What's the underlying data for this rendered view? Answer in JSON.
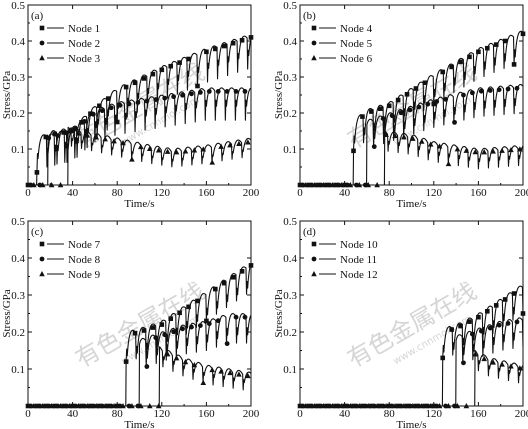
{
  "watermark": {
    "main": "有色金属在线",
    "url": "www.cnnmol.com"
  },
  "chart_data": [
    {
      "type": "line",
      "panel_label": "(a)",
      "xlabel": "Time/s",
      "ylabel": "Stress/GPa",
      "xlim": [
        0,
        200
      ],
      "ylim": [
        0,
        0.5
      ],
      "xticks": [
        0,
        40,
        80,
        120,
        160,
        200
      ],
      "yticks": [
        0.1,
        0.2,
        0.3,
        0.4,
        0.5
      ],
      "legend_position": "top-left",
      "grid": false,
      "series": [
        {
          "name": "Node 1",
          "marker": "square",
          "onset": 8,
          "final": 0.41,
          "min": 0.02,
          "drop": 0.065,
          "valley": 0.07,
          "period": 9,
          "phase": 0,
          "x": [
            0,
            8,
            20,
            40,
            60,
            80,
            120,
            160,
            200
          ],
          "y": [
            0,
            0.12,
            0.14,
            0.15,
            0.21,
            0.26,
            0.32,
            0.37,
            0.41
          ]
        },
        {
          "name": "Node 2",
          "marker": "circle",
          "onset": 18,
          "final": 0.26,
          "min": 0.02,
          "drop": 0.06,
          "valley": 0.06,
          "period": 9,
          "phase": 3,
          "x": [
            0,
            18,
            30,
            40,
            60,
            80,
            120,
            160,
            200
          ],
          "y": [
            0,
            0.13,
            0.14,
            0.15,
            0.2,
            0.22,
            0.24,
            0.26,
            0.26
          ]
        },
        {
          "name": "Node 3",
          "marker": "triangle",
          "onset": 36,
          "final": 0.12,
          "min": 0.01,
          "drop": 0.03,
          "valley": 0.08,
          "period": 9,
          "phase": 6,
          "x": [
            0,
            36,
            50,
            80,
            110,
            130,
            160,
            200
          ],
          "y": [
            0,
            0.15,
            0.14,
            0.12,
            0.1,
            0.09,
            0.1,
            0.12
          ]
        }
      ]
    },
    {
      "type": "line",
      "panel_label": "(b)",
      "xlabel": "Time/s",
      "ylabel": "Stress/GPa",
      "xlim": [
        0,
        200
      ],
      "ylim": [
        0,
        0.5
      ],
      "xticks": [
        0,
        40,
        80,
        120,
        160,
        200
      ],
      "yticks": [
        0.1,
        0.2,
        0.3,
        0.4,
        0.5
      ],
      "legend_position": "top-left",
      "grid": false,
      "series": [
        {
          "name": "Node 4",
          "marker": "square",
          "onset": 48,
          "final": 0.42,
          "min": 0.01,
          "drop": 0.065,
          "valley": 0.09,
          "period": 9,
          "phase": 0,
          "x": [
            0,
            48,
            60,
            80,
            100,
            120,
            160,
            200
          ],
          "y": [
            0,
            0.17,
            0.2,
            0.22,
            0.26,
            0.3,
            0.37,
            0.42
          ]
        },
        {
          "name": "Node 5",
          "marker": "circle",
          "onset": 60,
          "final": 0.27,
          "min": 0.01,
          "drop": 0.06,
          "valley": 0.08,
          "period": 9,
          "phase": 3,
          "x": [
            0,
            60,
            80,
            100,
            120,
            160,
            200
          ],
          "y": [
            0,
            0.17,
            0.19,
            0.21,
            0.23,
            0.26,
            0.27
          ]
        },
        {
          "name": "Node 6",
          "marker": "triangle",
          "onset": 76,
          "final": 0.1,
          "min": 0.01,
          "drop": 0.035,
          "valley": 0.07,
          "period": 9,
          "phase": 6,
          "x": [
            0,
            76,
            100,
            120,
            140,
            160,
            200
          ],
          "y": [
            0,
            0.14,
            0.13,
            0.11,
            0.1,
            0.09,
            0.1
          ]
        }
      ]
    },
    {
      "type": "line",
      "panel_label": "(c)",
      "xlabel": "Time/s",
      "ylabel": "Stress/GPa",
      "xlim": [
        0,
        200
      ],
      "ylim": [
        0,
        0.5
      ],
      "xticks": [
        0,
        40,
        80,
        120,
        160,
        200
      ],
      "yticks": [
        0.1,
        0.2,
        0.3,
        0.4,
        0.5
      ],
      "legend_position": "top-left",
      "grid": false,
      "series": [
        {
          "name": "Node 7",
          "marker": "square",
          "onset": 88,
          "final": 0.38,
          "min": 0.01,
          "drop": 0.06,
          "valley": 0.1,
          "period": 9,
          "phase": 0,
          "x": [
            0,
            88,
            100,
            120,
            140,
            160,
            180,
            200
          ],
          "y": [
            0,
            0.19,
            0.2,
            0.22,
            0.26,
            0.3,
            0.34,
            0.38
          ]
        },
        {
          "name": "Node 8",
          "marker": "circle",
          "onset": 100,
          "final": 0.24,
          "min": 0.01,
          "drop": 0.06,
          "valley": 0.08,
          "period": 9,
          "phase": 3,
          "x": [
            0,
            100,
            120,
            140,
            160,
            180,
            200
          ],
          "y": [
            0,
            0.17,
            0.19,
            0.21,
            0.22,
            0.24,
            0.24
          ]
        },
        {
          "name": "Node 9",
          "marker": "triangle",
          "onset": 118,
          "final": 0.08,
          "min": 0.01,
          "drop": 0.03,
          "valley": 0.06,
          "period": 9,
          "phase": 6,
          "x": [
            0,
            118,
            140,
            160,
            180,
            200
          ],
          "y": [
            0,
            0.15,
            0.12,
            0.1,
            0.09,
            0.08
          ]
        }
      ]
    },
    {
      "type": "line",
      "panel_label": "(d)",
      "xlabel": "Time/s",
      "ylabel": "Stress/GPa",
      "xlim": [
        0,
        200
      ],
      "ylim": [
        0,
        0.5
      ],
      "xticks": [
        0,
        40,
        80,
        120,
        160,
        200
      ],
      "yticks": [
        0.1,
        0.2,
        0.3,
        0.4,
        0.5
      ],
      "legend_position": "top-left",
      "grid": false,
      "series": [
        {
          "name": "Node 10",
          "marker": "square",
          "onset": 128,
          "final": 0.32,
          "min": 0.01,
          "drop": 0.06,
          "valley": 0.1,
          "period": 9,
          "phase": 0,
          "x": [
            0,
            128,
            140,
            160,
            180,
            200
          ],
          "y": [
            0,
            0.2,
            0.21,
            0.24,
            0.28,
            0.32
          ]
        },
        {
          "name": "Node 11",
          "marker": "circle",
          "onset": 140,
          "final": 0.23,
          "min": 0.01,
          "drop": 0.06,
          "valley": 0.08,
          "period": 9,
          "phase": 3,
          "x": [
            0,
            140,
            160,
            180,
            200
          ],
          "y": [
            0,
            0.18,
            0.2,
            0.22,
            0.23
          ]
        },
        {
          "name": "Node 12",
          "marker": "triangle",
          "onset": 157,
          "final": 0.1,
          "min": 0.01,
          "drop": 0.03,
          "valley": 0.06,
          "period": 9,
          "phase": 6,
          "x": [
            0,
            157,
            170,
            185,
            200
          ],
          "y": [
            0,
            0.14,
            0.12,
            0.11,
            0.1
          ]
        }
      ]
    }
  ]
}
